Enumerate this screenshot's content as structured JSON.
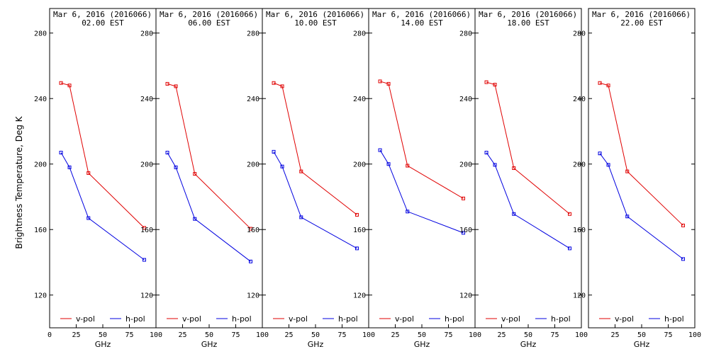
{
  "chart_data": {
    "type": "line",
    "ylabel": "Brightness Temperature, Deg K",
    "xlabel": "GHz",
    "xlim": [
      0,
      100
    ],
    "ylim": [
      100,
      295
    ],
    "x_ticks": [
      0,
      25,
      50,
      75,
      100
    ],
    "y_ticks": [
      120,
      160,
      200,
      240,
      280
    ],
    "x": [
      10.7,
      18.7,
      36.5,
      89.0
    ],
    "date_label": "Mar  6, 2016 (2016066)",
    "colors": {
      "v_pol": "#e00000",
      "h_pol": "#0000e0"
    },
    "panels": [
      {
        "time": "02.00 EST",
        "series": [
          {
            "name": "v-pol",
            "values": [
              249.5,
              248.0,
              194.5,
              161.0
            ]
          },
          {
            "name": "h-pol",
            "values": [
              207.0,
              198.0,
              167.0,
              141.5
            ]
          }
        ]
      },
      {
        "time": "06.00 EST",
        "series": [
          {
            "name": "v-pol",
            "values": [
              249.0,
              247.5,
              194.0,
              160.5
            ]
          },
          {
            "name": "h-pol",
            "values": [
              207.0,
              198.0,
              166.5,
              140.5
            ]
          }
        ]
      },
      {
        "time": "10.00 EST",
        "series": [
          {
            "name": "v-pol",
            "values": [
              249.5,
              247.5,
              195.5,
              169.0
            ]
          },
          {
            "name": "h-pol",
            "values": [
              207.5,
              198.5,
              167.5,
              148.5
            ]
          }
        ]
      },
      {
        "time": "14.00 EST",
        "series": [
          {
            "name": "v-pol",
            "values": [
              250.5,
              249.0,
              199.0,
              179.0
            ]
          },
          {
            "name": "h-pol",
            "values": [
              208.5,
              200.0,
              171.0,
              158.0
            ]
          }
        ]
      },
      {
        "time": "18.00 EST",
        "series": [
          {
            "name": "v-pol",
            "values": [
              250.0,
              248.5,
              197.5,
              169.5
            ]
          },
          {
            "name": "h-pol",
            "values": [
              207.0,
              199.5,
              169.5,
              148.5
            ]
          }
        ]
      },
      {
        "time": "22.00 EST",
        "series": [
          {
            "name": "v-pol",
            "values": [
              249.5,
              248.0,
              195.5,
              162.5
            ]
          },
          {
            "name": "h-pol",
            "values": [
              206.5,
              199.5,
              168.0,
              142.0
            ]
          }
        ]
      }
    ],
    "legend": [
      "v-pol",
      "h-pol"
    ]
  }
}
